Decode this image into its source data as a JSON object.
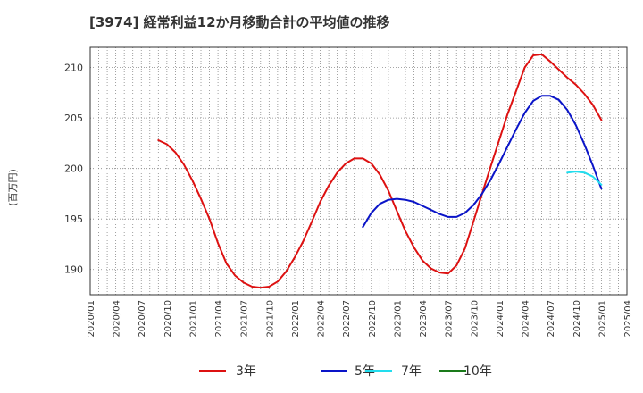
{
  "chart_data": {
    "type": "line",
    "title": "[3974]  経常利益12か月移動合計の平均値の推移",
    "ylabel": "(百万円)",
    "xlabel": "",
    "ylim": [
      187.5,
      212.0
    ],
    "yticks": [
      190,
      195,
      200,
      205,
      210
    ],
    "x_ticks": [
      "2020/01",
      "2020/04",
      "2020/07",
      "2020/10",
      "2021/01",
      "2021/04",
      "2021/07",
      "2021/10",
      "2022/01",
      "2022/04",
      "2022/07",
      "2022/10",
      "2023/01",
      "2023/04",
      "2023/07",
      "2023/10",
      "2024/01",
      "2024/04",
      "2024/07",
      "2024/10",
      "2025/01",
      "2025/04"
    ],
    "grid": true,
    "legend_position": "bottom",
    "series": [
      {
        "name": "3年",
        "color": "#dd1111",
        "x": [
          "2020/09",
          "2020/10",
          "2020/11",
          "2020/12",
          "2021/01",
          "2021/02",
          "2021/03",
          "2021/04",
          "2021/05",
          "2021/06",
          "2021/07",
          "2021/08",
          "2021/09",
          "2021/10",
          "2021/11",
          "2021/12",
          "2022/01",
          "2022/02",
          "2022/03",
          "2022/04",
          "2022/05",
          "2022/06",
          "2022/07",
          "2022/08",
          "2022/09",
          "2022/10",
          "2022/11",
          "2022/12",
          "2023/01",
          "2023/02",
          "2023/03",
          "2023/04",
          "2023/05",
          "2023/06",
          "2023/07",
          "2023/08",
          "2023/09",
          "2023/10",
          "2023/11",
          "2023/12",
          "2024/01",
          "2024/02",
          "2024/03",
          "2024/04",
          "2024/05",
          "2024/06",
          "2024/07",
          "2024/08",
          "2024/09",
          "2024/10",
          "2024/11",
          "2024/12",
          "2025/01"
        ],
        "values": [
          202.8,
          202.4,
          201.6,
          200.4,
          198.8,
          197.0,
          195.0,
          192.6,
          190.6,
          189.4,
          188.7,
          188.3,
          188.2,
          188.3,
          188.8,
          189.8,
          191.2,
          192.8,
          194.7,
          196.7,
          198.3,
          199.6,
          200.5,
          201.0,
          201.0,
          200.5,
          199.4,
          197.8,
          195.8,
          193.8,
          192.2,
          190.9,
          190.1,
          189.7,
          189.6,
          190.4,
          192.1,
          194.8,
          197.5,
          200.2,
          202.8,
          205.4,
          207.7,
          210.0,
          211.2,
          211.3,
          210.6,
          209.8,
          209.0,
          208.3,
          207.4,
          206.3,
          204.8
        ]
      },
      {
        "name": "5年",
        "color": "#0a14c8",
        "x": [
          "2022/09",
          "2022/10",
          "2022/11",
          "2022/12",
          "2023/01",
          "2023/02",
          "2023/03",
          "2023/04",
          "2023/05",
          "2023/06",
          "2023/07",
          "2023/08",
          "2023/09",
          "2023/10",
          "2023/11",
          "2023/12",
          "2024/01",
          "2024/02",
          "2024/03",
          "2024/04",
          "2024/05",
          "2024/06",
          "2024/07",
          "2024/08",
          "2024/09",
          "2024/10",
          "2024/11",
          "2024/12",
          "2025/01"
        ],
        "values": [
          194.2,
          195.6,
          196.5,
          196.9,
          197.0,
          196.9,
          196.7,
          196.3,
          195.9,
          195.5,
          195.2,
          195.2,
          195.6,
          196.4,
          197.5,
          198.9,
          200.5,
          202.2,
          203.9,
          205.5,
          206.7,
          207.2,
          207.2,
          206.8,
          205.8,
          204.3,
          202.4,
          200.3,
          198.0
        ]
      },
      {
        "name": "7年",
        "color": "#22ddee",
        "x": [
          "2024/09",
          "2024/10",
          "2024/11",
          "2024/12",
          "2025/01"
        ],
        "values": [
          199.6,
          199.7,
          199.6,
          199.2,
          198.4
        ]
      },
      {
        "name": "10年",
        "color": "#1a7a1a",
        "x": [],
        "values": []
      }
    ]
  }
}
